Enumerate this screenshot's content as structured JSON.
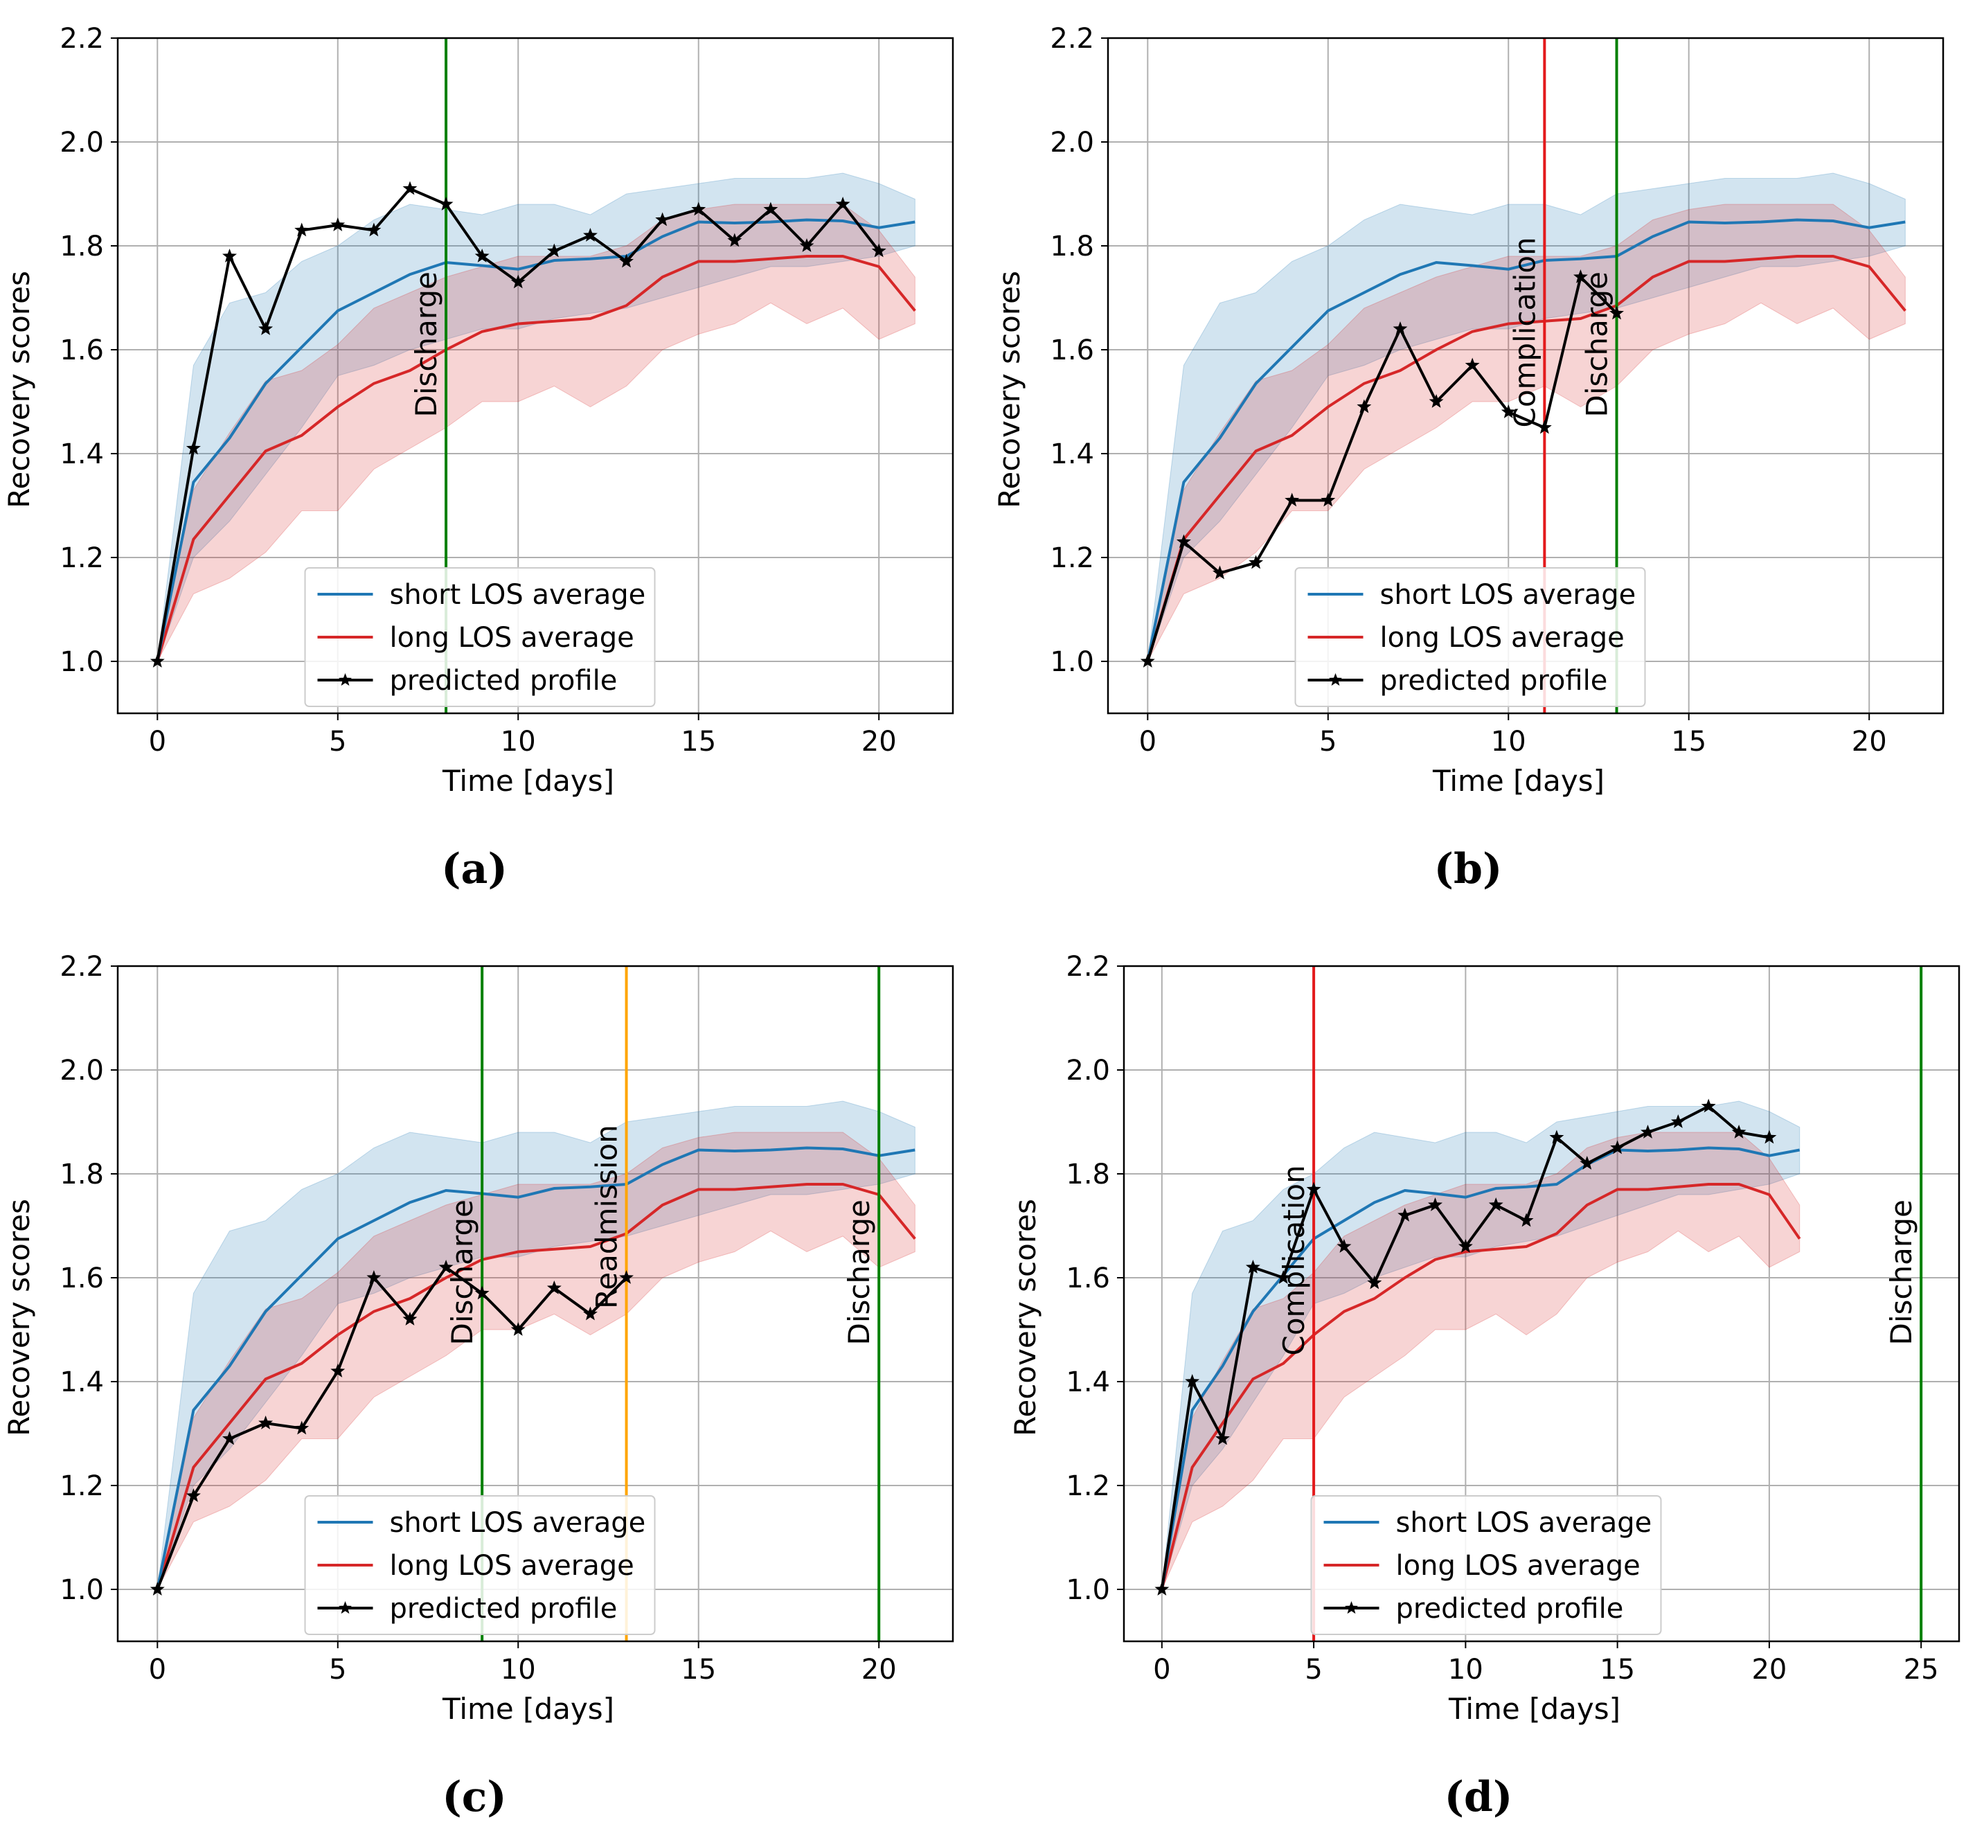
{
  "figure": {
    "colors": {
      "short": "#1f77b4",
      "long": "#d62728",
      "predicted": "#000000",
      "discharge": "#008000",
      "complication": "#e31a1c",
      "readmission": "#ffa500",
      "grid": "#b0b0b0"
    }
  },
  "legend": {
    "short": "short LOS average",
    "long": "long LOS average",
    "predicted": "predicted profile"
  },
  "chart_data": [
    {
      "id": "a",
      "type": "line",
      "caption": "(a)",
      "xlabel": "Time [days]",
      "ylabel": "Recovery scores",
      "xlim": [
        -1.1,
        22.05
      ],
      "ylim": [
        0.9,
        2.2
      ],
      "xticks": [
        0,
        5,
        10,
        15,
        20
      ],
      "yticks": [
        1.0,
        1.2,
        1.4,
        1.6,
        1.8,
        2.0,
        2.2
      ],
      "grid": true,
      "legend_position": "lower center",
      "events": [
        {
          "x": 8,
          "label": "Discharge",
          "kind": "discharge"
        }
      ],
      "predicted": [
        1.0,
        1.41,
        1.78,
        1.64,
        1.83,
        1.84,
        1.83,
        1.91,
        1.88,
        1.78,
        1.73,
        1.79,
        1.82,
        1.77,
        1.85,
        1.87,
        1.81,
        1.87,
        1.8,
        1.88,
        1.79
      ]
    },
    {
      "id": "b",
      "type": "line",
      "caption": "(b)",
      "xlabel": "Time [days]",
      "ylabel": "Recovery scores",
      "xlim": [
        -1.1,
        22.05
      ],
      "ylim": [
        0.9,
        2.2
      ],
      "xticks": [
        0,
        5,
        10,
        15,
        20
      ],
      "yticks": [
        1.0,
        1.2,
        1.4,
        1.6,
        1.8,
        2.0,
        2.2
      ],
      "grid": true,
      "legend_position": "lower center",
      "events": [
        {
          "x": 11,
          "label": "Complication",
          "kind": "complication"
        },
        {
          "x": 13,
          "label": "Discharge",
          "kind": "discharge"
        }
      ],
      "predicted": [
        1.0,
        1.23,
        1.17,
        1.19,
        1.31,
        1.31,
        1.49,
        1.64,
        1.5,
        1.57,
        1.48,
        1.45,
        1.74,
        1.67
      ]
    },
    {
      "id": "c",
      "type": "line",
      "caption": "(c)",
      "xlabel": "Time [days]",
      "ylabel": "Recovery scores",
      "xlim": [
        -1.1,
        22.05
      ],
      "ylim": [
        0.9,
        2.2
      ],
      "xticks": [
        0,
        5,
        10,
        15,
        20
      ],
      "yticks": [
        1.0,
        1.2,
        1.4,
        1.6,
        1.8,
        2.0,
        2.2
      ],
      "grid": true,
      "legend_position": "lower center",
      "events": [
        {
          "x": 9,
          "label": "Discharge",
          "kind": "discharge"
        },
        {
          "x": 13,
          "label": "Readmission",
          "kind": "readmission"
        },
        {
          "x": 20,
          "label": "Discharge",
          "kind": "discharge"
        }
      ],
      "predicted": [
        1.0,
        1.18,
        1.29,
        1.32,
        1.31,
        1.42,
        1.6,
        1.52,
        1.62,
        1.57,
        1.5,
        1.58,
        1.53,
        1.6
      ]
    },
    {
      "id": "d",
      "type": "line",
      "caption": "(d)",
      "xlabel": "Time [days]",
      "ylabel": "Recovery scores",
      "xlim": [
        -1.25,
        26.25
      ],
      "ylim": [
        0.9,
        2.2
      ],
      "xticks": [
        0,
        5,
        10,
        15,
        20,
        25
      ],
      "yticks": [
        1.0,
        1.2,
        1.4,
        1.6,
        1.8,
        2.0,
        2.2
      ],
      "grid": true,
      "legend_position": "lower center",
      "events": [
        {
          "x": 5,
          "label": "Complication",
          "kind": "complication"
        },
        {
          "x": 25,
          "label": "Discharge",
          "kind": "discharge"
        }
      ],
      "predicted": [
        1.0,
        1.4,
        1.29,
        1.62,
        1.6,
        1.77,
        1.66,
        1.59,
        1.72,
        1.74,
        1.66,
        1.74,
        1.71,
        1.87,
        1.82,
        1.85,
        1.88,
        1.9,
        1.93,
        1.88,
        1.87
      ]
    }
  ],
  "averages": {
    "short_mean": [
      1.0,
      1.345,
      1.43,
      1.535,
      1.605,
      1.675,
      1.71,
      1.745,
      1.768,
      1.762,
      1.755,
      1.772,
      1.775,
      1.78,
      1.818,
      1.846,
      1.844,
      1.846,
      1.85,
      1.848,
      1.835,
      1.846
    ],
    "short_lower": [
      1.0,
      1.2,
      1.27,
      1.36,
      1.45,
      1.55,
      1.57,
      1.6,
      1.62,
      1.64,
      1.64,
      1.66,
      1.67,
      1.68,
      1.7,
      1.72,
      1.74,
      1.76,
      1.76,
      1.77,
      1.78,
      1.8
    ],
    "short_upper": [
      1.0,
      1.57,
      1.69,
      1.71,
      1.77,
      1.8,
      1.85,
      1.88,
      1.87,
      1.86,
      1.88,
      1.88,
      1.86,
      1.9,
      1.91,
      1.92,
      1.93,
      1.93,
      1.93,
      1.94,
      1.92,
      1.89
    ],
    "long_mean": [
      1.0,
      1.235,
      1.32,
      1.405,
      1.435,
      1.49,
      1.535,
      1.56,
      1.6,
      1.635,
      1.65,
      1.655,
      1.66,
      1.685,
      1.74,
      1.77,
      1.77,
      1.775,
      1.78,
      1.78,
      1.76,
      1.675
    ],
    "long_lower": [
      1.0,
      1.13,
      1.16,
      1.21,
      1.29,
      1.29,
      1.37,
      1.41,
      1.45,
      1.5,
      1.5,
      1.53,
      1.49,
      1.53,
      1.6,
      1.63,
      1.65,
      1.69,
      1.65,
      1.68,
      1.62,
      1.65
    ],
    "long_upper": [
      1.0,
      1.33,
      1.44,
      1.54,
      1.56,
      1.61,
      1.68,
      1.71,
      1.74,
      1.76,
      1.78,
      1.78,
      1.78,
      1.8,
      1.85,
      1.87,
      1.88,
      1.88,
      1.88,
      1.88,
      1.83,
      1.74
    ]
  }
}
